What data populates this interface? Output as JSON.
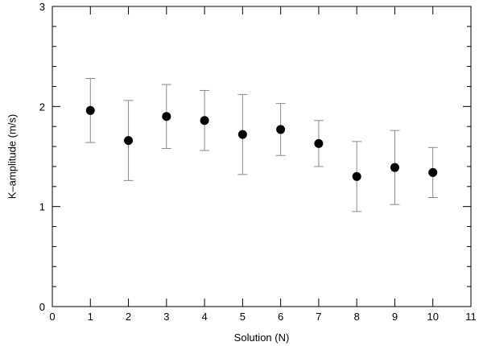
{
  "chart_data": {
    "type": "scatter",
    "title": "",
    "xlabel": "Solution (N)",
    "ylabel": "K–amplitude (m/s)",
    "xlim": [
      0,
      11
    ],
    "ylim": [
      0,
      3
    ],
    "x_ticks": [
      0,
      1,
      2,
      3,
      4,
      5,
      6,
      7,
      8,
      9,
      10,
      11
    ],
    "y_ticks": [
      0,
      1,
      2,
      3
    ],
    "x_tick_labels": [
      "0",
      "1",
      "2",
      "3",
      "4",
      "5",
      "6",
      "7",
      "8",
      "9",
      "10",
      "11"
    ],
    "y_tick_labels": [
      "0",
      "1",
      "2",
      "3"
    ],
    "grid": false,
    "series": [
      {
        "x": [
          1,
          2,
          3,
          4,
          5,
          6,
          7,
          8,
          9,
          10
        ],
        "y": [
          1.96,
          1.66,
          1.9,
          1.86,
          1.72,
          1.77,
          1.63,
          1.3,
          1.39,
          1.34
        ],
        "y_err_low": [
          1.64,
          1.26,
          1.58,
          1.56,
          1.32,
          1.51,
          1.4,
          0.95,
          1.02,
          1.09
        ],
        "y_err_high": [
          2.28,
          2.06,
          2.22,
          2.16,
          2.12,
          2.03,
          1.86,
          1.65,
          1.76,
          1.59
        ]
      }
    ],
    "colors": {
      "marker": "#000000",
      "error_bar": "#888888",
      "axes": "#000000"
    }
  }
}
